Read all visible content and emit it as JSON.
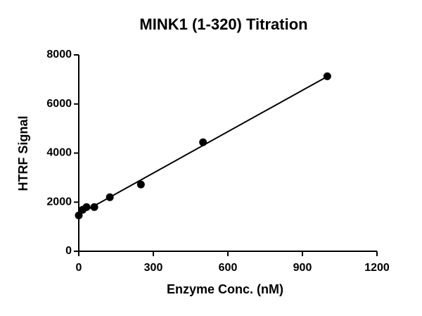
{
  "chart_data": {
    "type": "scatter",
    "title": "MINK1 (1-320) Titration",
    "x_label": "Enzyme Conc. (nM)",
    "y_label": "HTRF Signal",
    "x": [
      0,
      15.6,
      31.25,
      62.5,
      125,
      250,
      500,
      1000
    ],
    "values": [
      1460,
      1690,
      1800,
      1800,
      2200,
      2720,
      4440,
      7130
    ],
    "color": "#000000",
    "fit_line": {
      "x": [
        0,
        1000
      ],
      "values": [
        1500,
        7120
      ]
    },
    "xlim": [
      0,
      1200
    ],
    "xticks": [
      0,
      300,
      600,
      900,
      1200
    ],
    "ylim": [
      0,
      8000
    ],
    "yticks": [
      0,
      2000,
      4000,
      6000,
      8000
    ]
  }
}
